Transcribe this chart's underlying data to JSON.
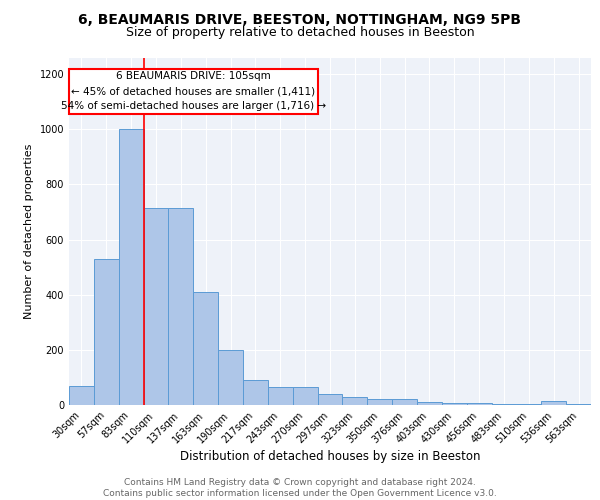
{
  "title1": "6, BEAUMARIS DRIVE, BEESTON, NOTTINGHAM, NG9 5PB",
  "title2": "Size of property relative to detached houses in Beeston",
  "xlabel": "Distribution of detached houses by size in Beeston",
  "ylabel": "Number of detached properties",
  "categories": [
    "30sqm",
    "57sqm",
    "83sqm",
    "110sqm",
    "137sqm",
    "163sqm",
    "190sqm",
    "217sqm",
    "243sqm",
    "270sqm",
    "297sqm",
    "323sqm",
    "350sqm",
    "376sqm",
    "403sqm",
    "430sqm",
    "456sqm",
    "483sqm",
    "510sqm",
    "536sqm",
    "563sqm"
  ],
  "values": [
    70,
    530,
    1000,
    715,
    715,
    410,
    198,
    90,
    65,
    65,
    40,
    30,
    20,
    20,
    12,
    7,
    7,
    5,
    5,
    13,
    5
  ],
  "bar_color": "#aec6e8",
  "bar_edge_color": "#5b9bd5",
  "annotation_box_text": "6 BEAUMARIS DRIVE: 105sqm\n← 45% of detached houses are smaller (1,411)\n54% of semi-detached houses are larger (1,716) →",
  "red_line_x": 2.5,
  "ylim": [
    0,
    1260
  ],
  "yticks": [
    0,
    200,
    400,
    600,
    800,
    1000,
    1200
  ],
  "background_color": "#eef2f9",
  "footer_text": "Contains HM Land Registry data © Crown copyright and database right 2024.\nContains public sector information licensed under the Open Government Licence v3.0.",
  "title1_fontsize": 10,
  "title2_fontsize": 9,
  "xlabel_fontsize": 8.5,
  "ylabel_fontsize": 8,
  "tick_fontsize": 7,
  "footer_fontsize": 6.5,
  "annot_fontsize": 7.5
}
